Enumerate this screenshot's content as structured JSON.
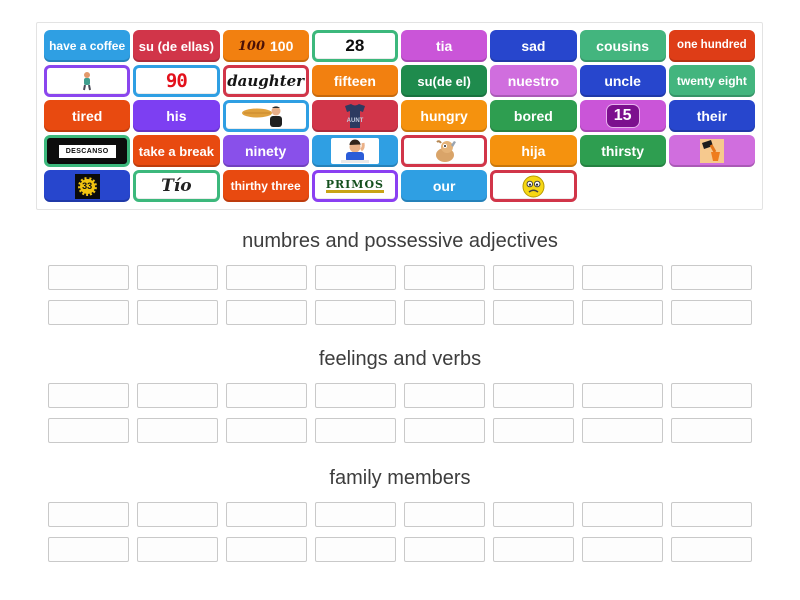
{
  "board": {
    "tiles": [
      {
        "label": "have a coffee",
        "bg": "#2f9fe3",
        "fs": 12,
        "weight": 800
      },
      {
        "label": "su (de ellas)",
        "bg": "#d13549",
        "fs": 13,
        "weight": 800
      },
      {
        "icon": "hundred-logo",
        "icon_text": "100",
        "label": "100",
        "bg": "#f28010"
      },
      {
        "icon": "number-28",
        "icon_text": "28",
        "card": true,
        "border": "#3cb87c"
      },
      {
        "label": "tia",
        "bg": "#ca55d8"
      },
      {
        "label": "sad",
        "bg": "#2746cd"
      },
      {
        "label": "cousins",
        "bg": "#43b57e"
      },
      {
        "label": "one hundred",
        "bg": "#de3d17",
        "fs": 11.5
      },
      {
        "icon": "walking-child",
        "card": true,
        "border": "#8a46ee"
      },
      {
        "icon": "number-90",
        "icon_text": "90",
        "card": true,
        "border": "#2f9fe3"
      },
      {
        "icon": "daughter-script",
        "icon_text": "daughter",
        "card": true,
        "border": "#d13549"
      },
      {
        "label": "fifteen",
        "bg": "#f28010"
      },
      {
        "label": "su(de el)",
        "bg": "#1f8b4d",
        "fs": 13,
        "weight": 800
      },
      {
        "label": "nuestro",
        "bg": "#d06ede",
        "weight": 800
      },
      {
        "label": "uncle",
        "bg": "#2746cd"
      },
      {
        "label": "twenty eight",
        "bg": "#43b57e",
        "fs": 12
      },
      {
        "label": "tired",
        "bg": "#e84a10"
      },
      {
        "label": "his",
        "bg": "#7d3ff2",
        "weight": 800
      },
      {
        "icon": "man-eating-baguette",
        "card": true,
        "border": "#2f9fe3"
      },
      {
        "icon": "aunt-tshirt",
        "icon_text": "AUNT",
        "bg": "#d13549"
      },
      {
        "label": "hungry",
        "bg": "#f5920e"
      },
      {
        "label": "bored",
        "bg": "#2e9e50"
      },
      {
        "icon": "badge-15",
        "icon_text": "15",
        "bg": "#ca55d8"
      },
      {
        "label": "their",
        "bg": "#2746cd",
        "weight": 800
      },
      {
        "icon": "descanso-sign",
        "icon_text": "DESCANSO",
        "bg": "#0d0d0d",
        "border": "#3cb87c"
      },
      {
        "label": "take a break",
        "bg": "#e84a10",
        "fs": 13,
        "weight": 800
      },
      {
        "label": "ninety",
        "bg": "#8950ea"
      },
      {
        "icon": "bored-man",
        "bg": "#2f9fe3"
      },
      {
        "icon": "drinking-dog",
        "card": true,
        "border": "#d13549"
      },
      {
        "label": "hija",
        "bg": "#f5920e"
      },
      {
        "label": "thirsty",
        "bg": "#2e9e50"
      },
      {
        "icon": "pouring-drink",
        "bg": "#d06ede"
      },
      {
        "icon": "gear-33",
        "icon_text": "33",
        "bg": "#2746cd"
      },
      {
        "icon": "tio-text",
        "icon_text": "Tío",
        "card": true,
        "border": "#3cb87c"
      },
      {
        "label": "thirthy three",
        "bg": "#e84a10",
        "fs": 12
      },
      {
        "icon": "primos-logo",
        "icon_text": "PRIMOS",
        "card": true,
        "border": "#8a3ff2"
      },
      {
        "label": "our",
        "bg": "#2f9fe3",
        "weight": 800
      },
      {
        "icon": "sad-emoji",
        "card": true,
        "border": "#d13549"
      }
    ]
  },
  "categories": [
    {
      "title": "numbres and possessive adjectives",
      "slot_rows": 2,
      "slots_per_row": 8
    },
    {
      "title": "feelings and verbs",
      "slot_rows": 2,
      "slots_per_row": 8
    },
    {
      "title": "family members",
      "slot_rows": 2,
      "slots_per_row": 8
    }
  ],
  "theme": {
    "heading_color": "#3d3d3d",
    "slot_border": "#c9c9c9",
    "board_border": "#e3e3e3"
  }
}
